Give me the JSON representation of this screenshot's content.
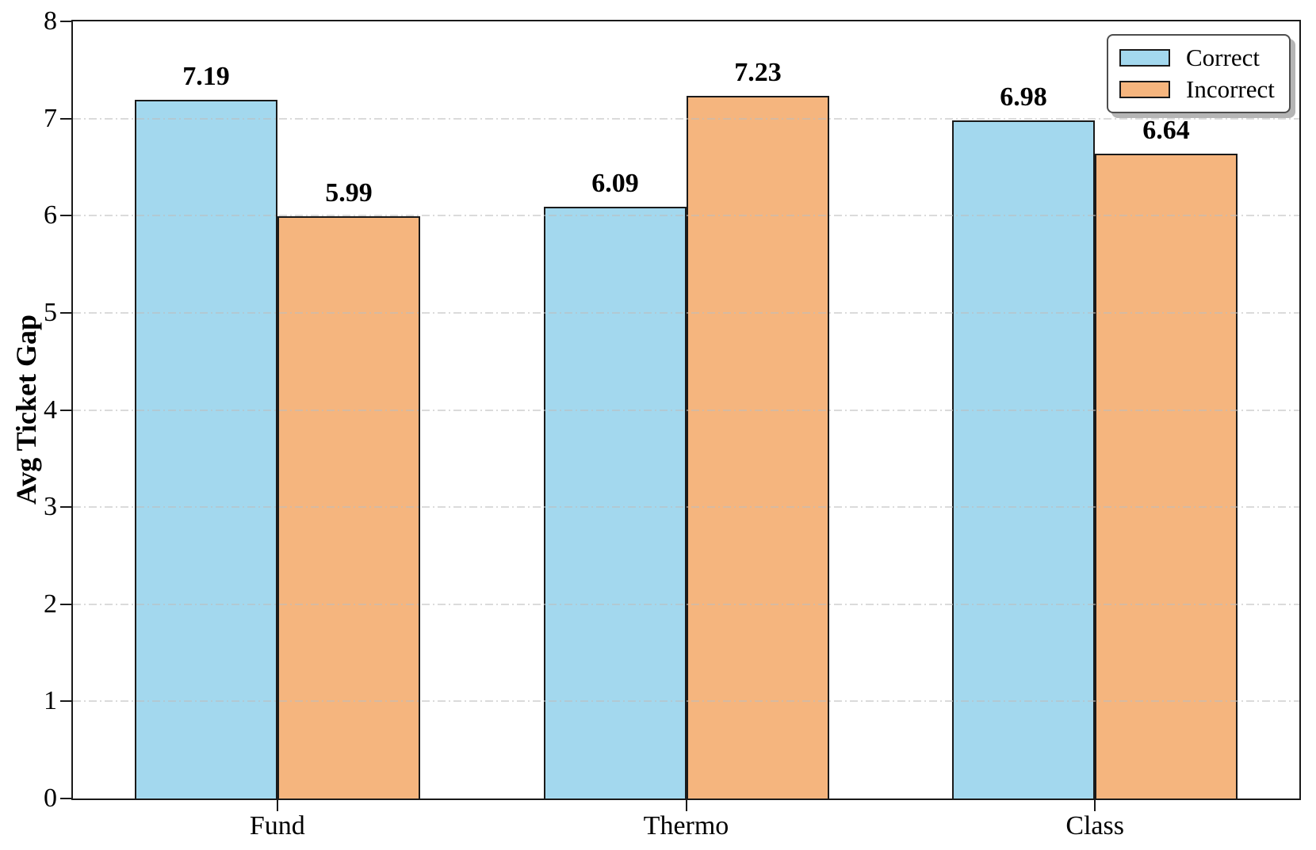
{
  "chart_data": {
    "type": "bar",
    "title": "",
    "xlabel": "",
    "ylabel": "Avg Ticket Gap",
    "categories": [
      "Fund",
      "Thermo",
      "Class"
    ],
    "series": [
      {
        "name": "Correct",
        "color": "#A3D8EE",
        "edge_color": "#1a1a1a",
        "values": [
          7.19,
          6.09,
          6.98
        ]
      },
      {
        "name": "Incorrect",
        "color": "#F5B57E",
        "edge_color": "#1a1a1a",
        "values": [
          5.99,
          7.23,
          6.64
        ]
      }
    ],
    "value_labels": [
      [
        "7.19",
        "6.09",
        "6.98"
      ],
      [
        "5.99",
        "7.23",
        "6.64"
      ]
    ],
    "ylim": [
      0,
      8
    ],
    "yticks": [
      "0",
      "1",
      "2",
      "3",
      "4",
      "5",
      "6",
      "7",
      "8"
    ],
    "grid": "horizontal dash-dot",
    "grid_color": "#bdbdbd",
    "legend_position": "upper right",
    "background_color": "#ffffff",
    "spine_color": "#1a1a1a"
  }
}
